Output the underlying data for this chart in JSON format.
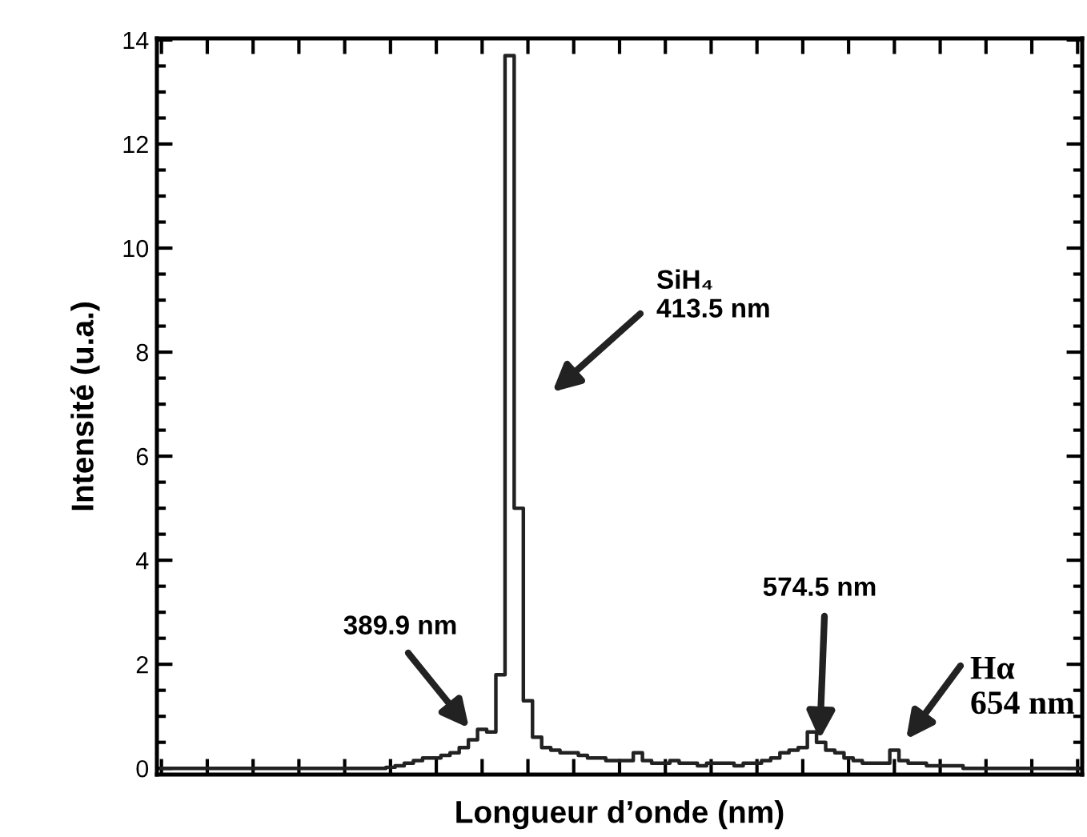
{
  "chart_data": {
    "type": "step",
    "xlabel": "Longueur d’onde (nm)",
    "ylabel": "Intensité (u.a.)",
    "categories": [
      null,
      null,
      null,
      null,
      null,
      null,
      null,
      null,
      null,
      null,
      null,
      null,
      null,
      null,
      null,
      null,
      null,
      null,
      null,
      null,
      null,
      null,
      null,
      null,
      null,
      null,
      null,
      null,
      null,
      null,
      null,
      null,
      null,
      null,
      null,
      null,
      null,
      null,
      null,
      null,
      null,
      null,
      null,
      null,
      null,
      null,
      null,
      null,
      null,
      null,
      null,
      null,
      null,
      null,
      null,
      null,
      null,
      null,
      null,
      null,
      null,
      null,
      null,
      null,
      null,
      null,
      null,
      null,
      null,
      null,
      null,
      null,
      null,
      null,
      null,
      null,
      null,
      null,
      null,
      null,
      null,
      null,
      null,
      null,
      null,
      null,
      null,
      null,
      null,
      null,
      null,
      null,
      null,
      null,
      null,
      null,
      null,
      null,
      null,
      null,
      null
    ],
    "series": [
      {
        "color": "#222222",
        "values": [
          0,
          0,
          0,
          0,
          0,
          0,
          0,
          0,
          0,
          0,
          0,
          0,
          0,
          0,
          0,
          0,
          0,
          0,
          0,
          0,
          0,
          0,
          0,
          0,
          0,
          0.02,
          0.05,
          0.1,
          0.15,
          0.2,
          0.2,
          0.25,
          0.3,
          0.4,
          0.55,
          0.75,
          0.7,
          1.8,
          13.7,
          5.0,
          1.3,
          0.6,
          0.4,
          0.35,
          0.3,
          0.3,
          0.25,
          0.2,
          0.2,
          0.15,
          0.15,
          0.15,
          0.3,
          0.15,
          0.1,
          0.1,
          0.15,
          0.1,
          0.1,
          0.05,
          0.1,
          0.1,
          0.1,
          0.05,
          0.1,
          0.1,
          0.15,
          0.2,
          0.3,
          0.35,
          0.4,
          0.7,
          0.5,
          0.35,
          0.3,
          0.2,
          0.15,
          0.1,
          0.1,
          0.1,
          0.35,
          0.15,
          0.1,
          0.1,
          0.05,
          0.05,
          0.05,
          0.05,
          0,
          0,
          0,
          0,
          0,
          0,
          0,
          0,
          0,
          0,
          0,
          0,
          0
        ]
      }
    ],
    "ylim": [
      -0.12,
      14.03
    ],
    "yticks": [
      0,
      2,
      4,
      6,
      8,
      10,
      12,
      14
    ],
    "tick_labels": "y",
    "grid": false,
    "legend": false,
    "annotations": [
      {
        "text": "SiH₄\n413.5 nm"
      },
      {
        "text": "389.9 nm"
      },
      {
        "text": "574.5 nm"
      },
      {
        "text": "Hα\n654 nm"
      }
    ]
  }
}
